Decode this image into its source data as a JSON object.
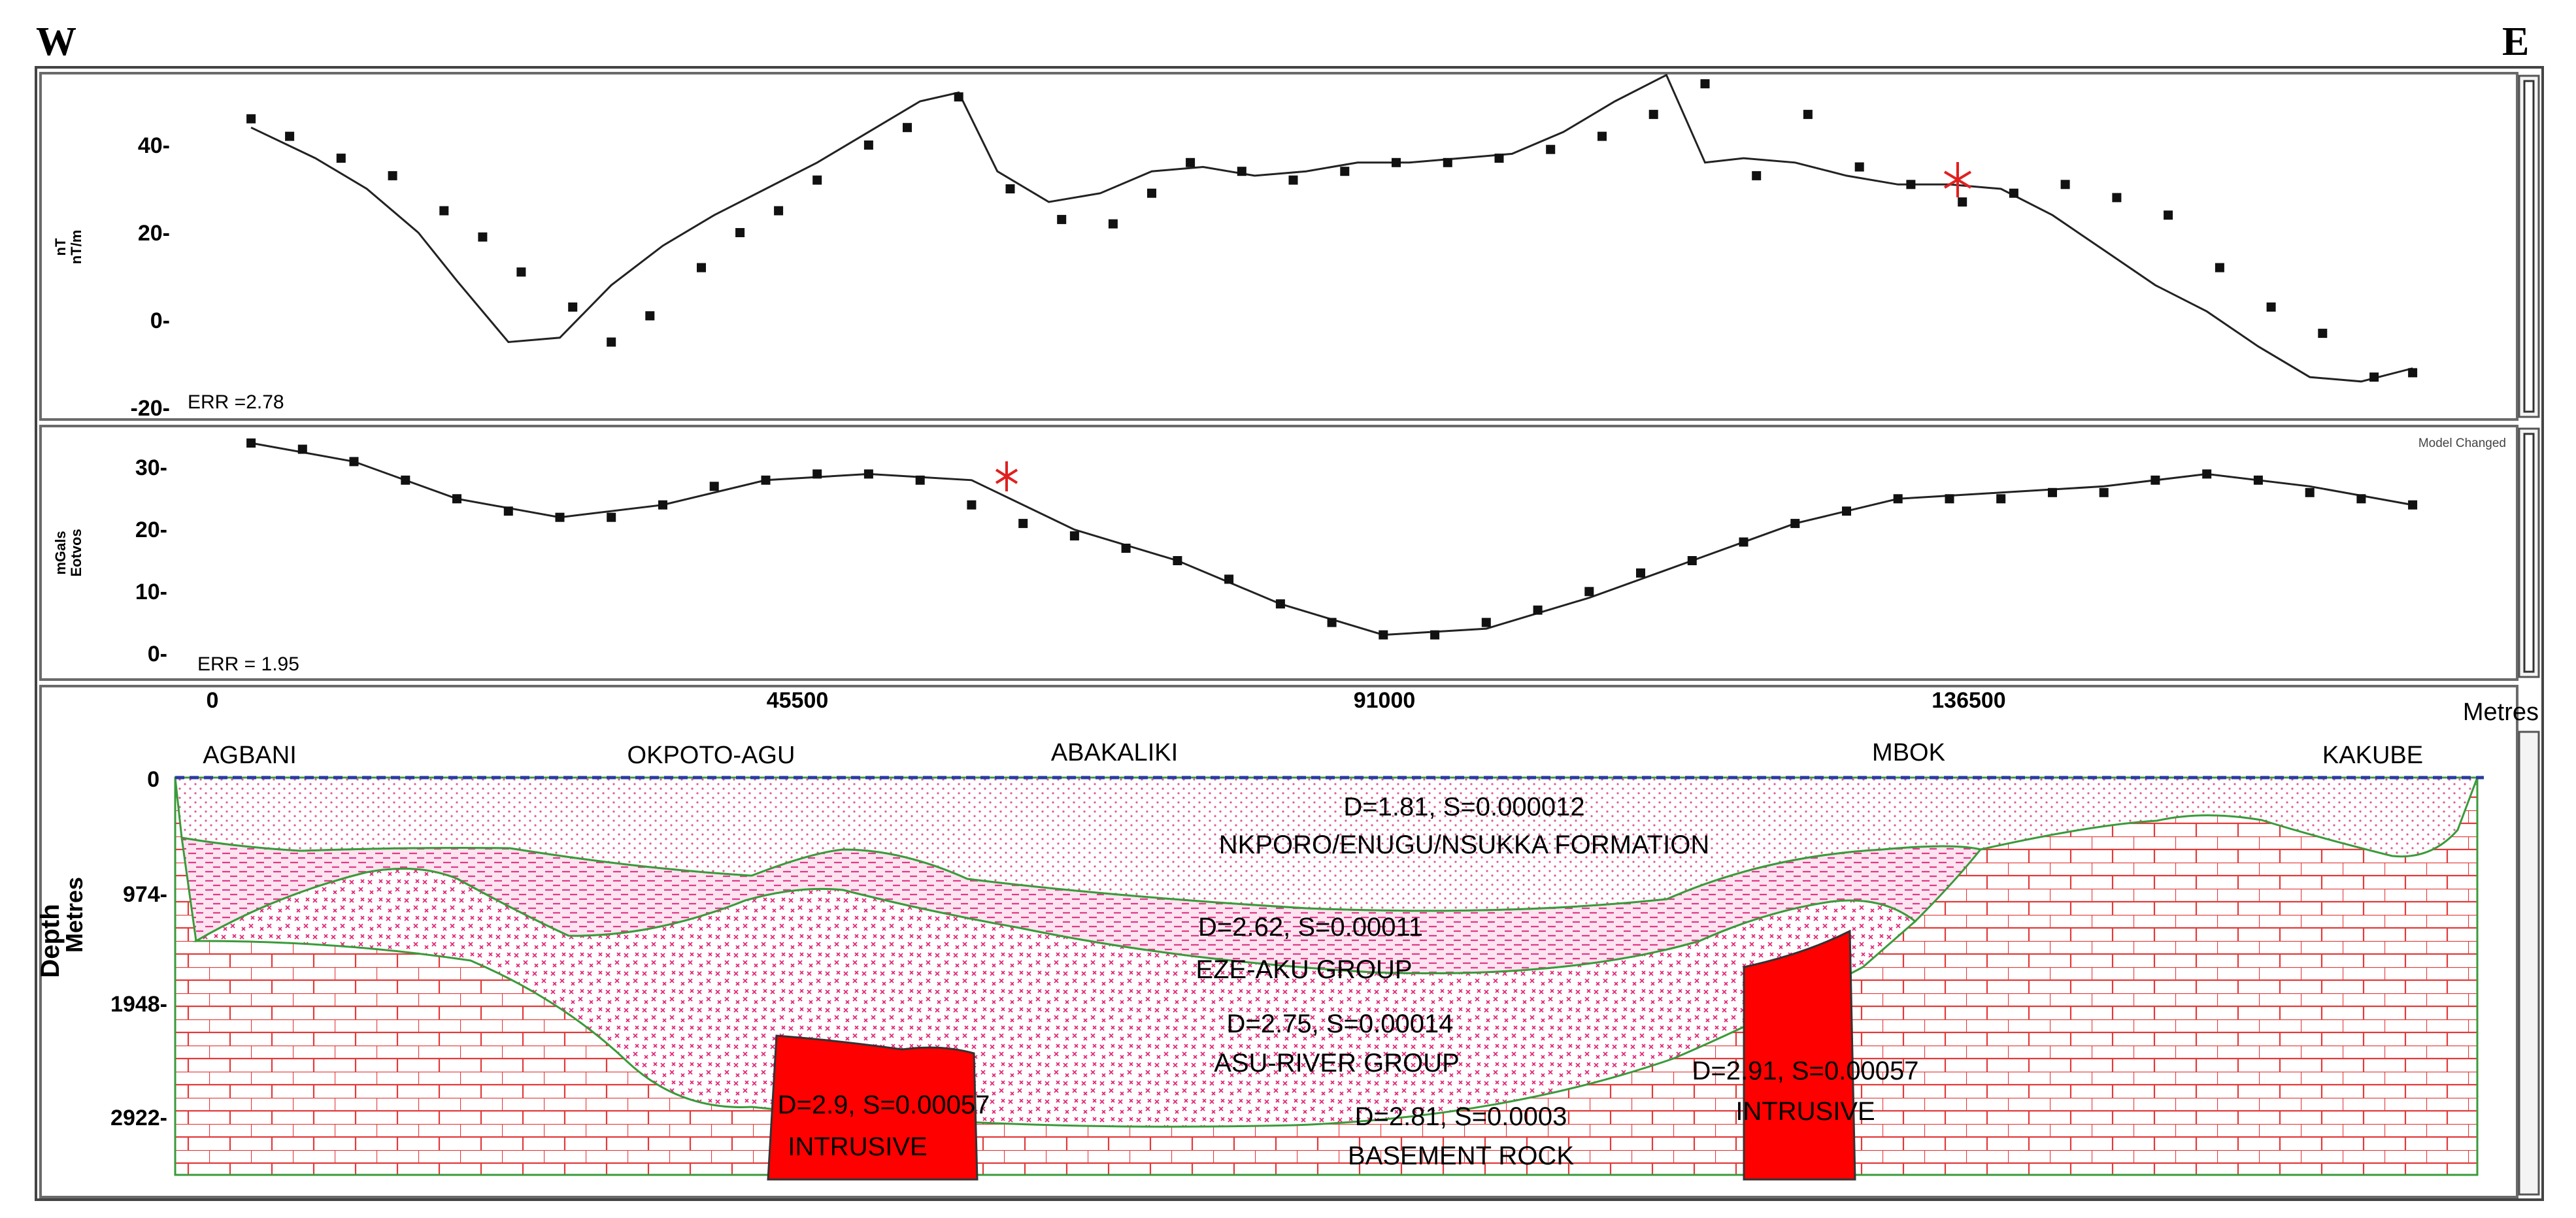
{
  "header": {
    "west": "W",
    "east": "E"
  },
  "magnetic_panel": {
    "ylabel_1": "nT",
    "ylabel_2": "nT/m",
    "ticks": [
      "40-",
      "20-",
      "0-",
      "-20-"
    ],
    "error": "ERR =2.78"
  },
  "gravity_panel": {
    "ylabel_1": "mGals",
    "ylabel_2": "Eotvos",
    "ticks": [
      "30-",
      "20-",
      "10-",
      "0-"
    ],
    "error": "ERR = 1.95",
    "status": "Model Changed"
  },
  "distance_axis": {
    "ticks": [
      "0",
      "45500",
      "91000",
      "136500"
    ],
    "unit": "Metres"
  },
  "depth_axis": {
    "label_1": "Depth",
    "label_2": "Metres",
    "ticks": [
      "0",
      "974-",
      "1948-",
      "2922-"
    ]
  },
  "locations": [
    "AGBANI",
    "OKPOTO-AGU",
    "ABAKALIKI",
    "MBOK",
    "KAKUBE"
  ],
  "bodies": [
    {
      "params": "D=1.81, S=0.000012",
      "name": "NKPORO/ENUGU/NSUKKA FORMATION"
    },
    {
      "params": "D=2.62, S=0.00011",
      "name": "EZE-AKU GROUP"
    },
    {
      "params": "D=2.75, S=0.00014",
      "name": "ASU-RIVER GROUP"
    },
    {
      "params": "D=2.81, S=0.0003",
      "name": "BASEMENT ROCK"
    },
    {
      "params": "D=2.9, S=0.00057",
      "name": "INTRUSIVE"
    },
    {
      "params": "D=2.91, S=0.00057",
      "name": "INTRUSIVE"
    }
  ],
  "chart_data": [
    {
      "type": "scatter",
      "ylim": [
        -20,
        55
      ],
      "xlim": [
        0,
        173000
      ],
      "observed": {
        "x": [
          3000,
          6000,
          10000,
          14000,
          18000,
          21000,
          24000,
          28000,
          31000,
          34000,
          38000,
          41000,
          44000,
          47000,
          51000,
          54000,
          58000,
          62000,
          66000,
          70000,
          73000,
          76000,
          80000,
          84000,
          88000,
          92000,
          96000,
          100000,
          104000,
          108000,
          112000,
          116000,
          120000,
          124000,
          128000,
          132000,
          136000,
          140000,
          144000,
          148000,
          152000,
          156000,
          160000,
          164000,
          168000,
          171000
        ],
        "y": [
          46,
          42,
          37,
          33,
          25,
          19,
          11,
          3,
          -5,
          1,
          12,
          20,
          25,
          32,
          40,
          44,
          51,
          30,
          23,
          22,
          29,
          36,
          34,
          32,
          34,
          36,
          36,
          37,
          39,
          42,
          47,
          54,
          33,
          47,
          35,
          31,
          27,
          29,
          31,
          28,
          24,
          12,
          3,
          -3,
          -13,
          -12
        ]
      },
      "calculated": {
        "x": [
          3000,
          8000,
          12000,
          16000,
          19000,
          23000,
          27000,
          31000,
          35000,
          39000,
          43000,
          47000,
          51000,
          55000,
          58000,
          61000,
          65000,
          69000,
          73000,
          77000,
          81000,
          85000,
          89000,
          93000,
          97000,
          101000,
          105000,
          109000,
          113000,
          116000,
          119000,
          123000,
          127000,
          131000,
          135000,
          139000,
          143000,
          147000,
          151000,
          155000,
          159000,
          163000,
          167000,
          171000
        ],
        "y": [
          44,
          37,
          30,
          20,
          9,
          -5,
          -4,
          8,
          17,
          24,
          30,
          36,
          43,
          50,
          52,
          34,
          27,
          29,
          34,
          35,
          33,
          34,
          36,
          36,
          37,
          38,
          43,
          50,
          56,
          36,
          37,
          36,
          33,
          31,
          31,
          30,
          24,
          16,
          8,
          2,
          -6,
          -13,
          -14,
          -11
        ]
      }
    },
    {
      "type": "scatter",
      "ylim": [
        -2,
        36
      ],
      "xlim": [
        0,
        173000
      ],
      "observed": {
        "x": [
          3000,
          7000,
          11000,
          15000,
          19000,
          23000,
          27000,
          31000,
          35000,
          39000,
          43000,
          47000,
          51000,
          55000,
          59000,
          63000,
          67000,
          71000,
          75000,
          79000,
          83000,
          87000,
          91000,
          95000,
          99000,
          103000,
          107000,
          111000,
          115000,
          119000,
          123000,
          127000,
          131000,
          135000,
          139000,
          143000,
          147000,
          151000,
          155000,
          159000,
          163000,
          167000,
          171000
        ],
        "y": [
          34,
          33,
          31,
          28,
          25,
          23,
          22,
          22,
          24,
          27,
          28,
          29,
          29,
          28,
          24,
          21,
          19,
          17,
          15,
          12,
          8,
          5,
          3,
          3,
          5,
          7,
          10,
          13,
          15,
          18,
          21,
          23,
          25,
          25,
          25,
          26,
          26,
          28,
          29,
          28,
          26,
          25,
          24
        ]
      },
      "calculated": {
        "x": [
          3000,
          11000,
          19000,
          27000,
          35000,
          43000,
          51000,
          59000,
          67000,
          75000,
          83000,
          91000,
          99000,
          107000,
          115000,
          123000,
          131000,
          139000,
          147000,
          155000,
          163000,
          171000
        ],
        "y": [
          34,
          31,
          25,
          22,
          24,
          28,
          29,
          28,
          20,
          15,
          8,
          3,
          4,
          9,
          15,
          21,
          25,
          26,
          27,
          29,
          27,
          24
        ]
      }
    }
  ]
}
